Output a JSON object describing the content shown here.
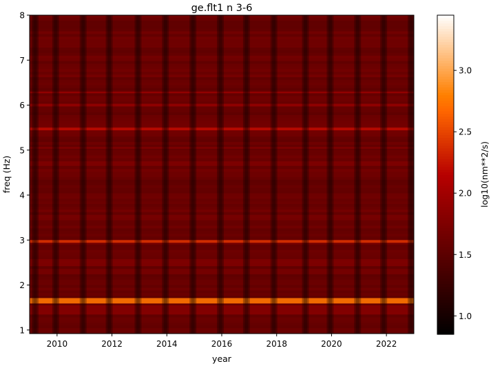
{
  "chart_data": {
    "type": "heatmap",
    "title": "ge.flt1 n 3-6",
    "xlabel": "year",
    "ylabel": "freq (Hz)",
    "colorbar_label": "log10(nm**2/s)",
    "colormap": "gist_heat",
    "xlim": [
      2009.0,
      2023.0
    ],
    "ylim": [
      0.92,
      8.0
    ],
    "x_ticks": [
      2010,
      2012,
      2014,
      2016,
      2018,
      2020,
      2022
    ],
    "y_ticks": [
      1,
      2,
      3,
      4,
      5,
      6,
      7,
      8
    ],
    "x_tick_labels": [
      "2010",
      "2012",
      "2014",
      "2016",
      "2018",
      "2020",
      "2022"
    ],
    "y_tick_labels": [
      "1",
      "2",
      "3",
      "4",
      "5",
      "6",
      "7",
      "8"
    ],
    "colorbar_range": [
      0.85,
      3.45
    ],
    "colorbar_ticks": [
      1.0,
      1.5,
      2.0,
      2.5,
      3.0
    ],
    "colorbar_tick_labels": [
      "1.0",
      "1.5",
      "2.0",
      "2.5",
      "3.0"
    ],
    "background_level": 1.6,
    "horizontal_bands": [
      {
        "freq": 1.65,
        "level": 2.75,
        "width": 0.06
      },
      {
        "freq": 1.45,
        "level": 1.8,
        "width": 0.1
      },
      {
        "freq": 2.5,
        "level": 1.75,
        "width": 0.08
      },
      {
        "freq": 2.97,
        "level": 2.4,
        "width": 0.03
      },
      {
        "freq": 3.5,
        "level": 1.7,
        "width": 0.06
      },
      {
        "freq": 4.7,
        "level": 1.75,
        "width": 0.05
      },
      {
        "freq": 5.47,
        "level": 2.2,
        "width": 0.03
      },
      {
        "freq": 5.05,
        "level": 1.75,
        "width": 0.02
      },
      {
        "freq": 6.0,
        "level": 1.9,
        "width": 0.03
      },
      {
        "freq": 6.28,
        "level": 2.0,
        "width": 0.01
      }
    ],
    "dark_stripes": [
      2009.2,
      2009.95,
      2010.95,
      2011.9,
      2012.95,
      2013.95,
      2014.95,
      2015.95,
      2016.9,
      2017.9,
      2019.05,
      2019.95,
      2020.95,
      2021.9,
      2022.9
    ]
  }
}
